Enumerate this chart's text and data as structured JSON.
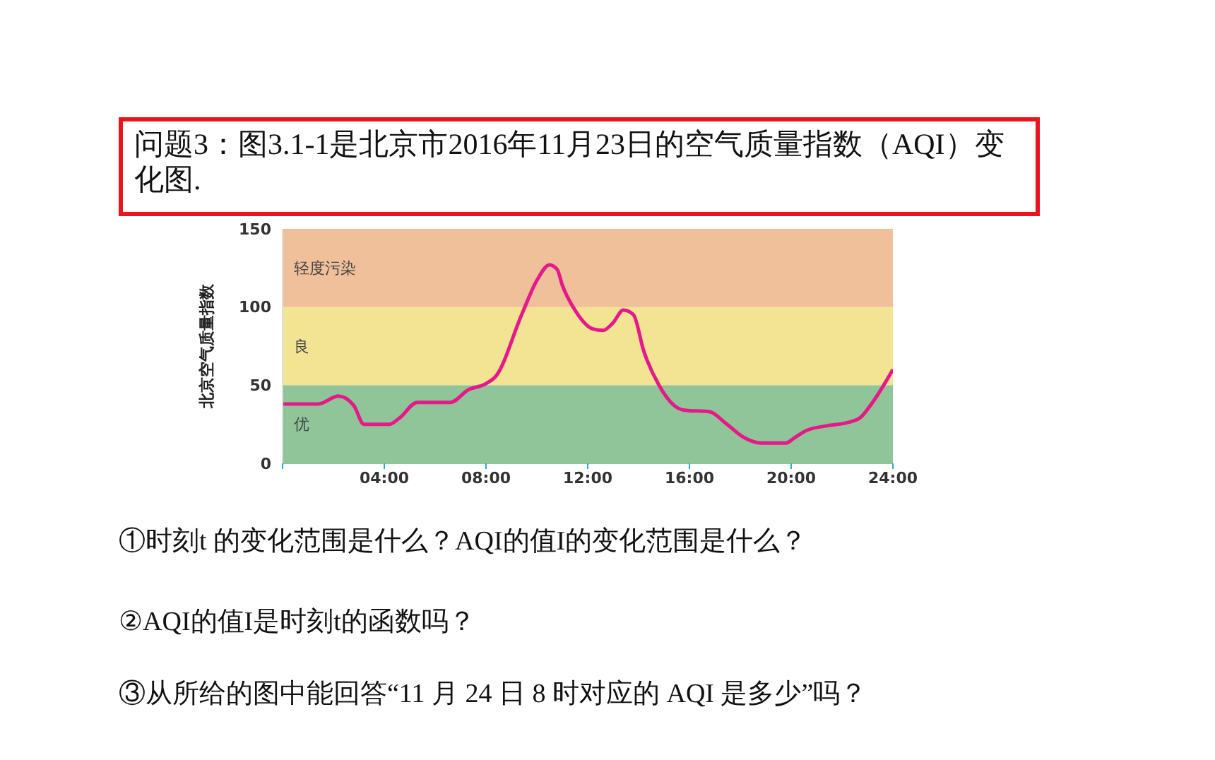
{
  "chart_data": {
    "type": "line",
    "title": "问题3：图3.1-1是北京市2016年11月23日的空气质量指数（AQI）变化图.",
    "ylabel": "北京空气质量指数",
    "x": [
      0,
      1.4,
      2.2,
      2.8,
      3.2,
      4.2,
      4.6,
      5.3,
      6.6,
      7.3,
      8.0,
      8.4,
      9.4,
      10.0,
      10.5,
      10.8,
      11.0,
      11.5,
      12.2,
      12.6,
      13.0,
      13.4,
      13.8,
      14.2,
      14.8,
      15.4,
      15.8,
      16.8,
      17.4,
      18.2,
      18.8,
      19.8,
      20.1,
      20.6,
      21.4,
      22.2,
      22.7,
      23.2,
      24
    ],
    "series": [
      {
        "color": "#e5198a",
        "values": [
          38,
          38,
          43,
          37,
          25,
          25,
          29,
          39,
          39,
          47,
          51,
          56,
          95,
          117,
          127,
          124,
          114,
          98,
          86,
          85,
          90,
          98,
          95,
          72,
          50,
          37,
          34,
          33,
          26,
          16,
          13,
          13,
          16,
          21,
          24,
          26,
          29,
          39,
          60
        ]
      }
    ],
    "xlim": [
      0,
      24
    ],
    "xticks": [
      {
        "value": 0,
        "label": null
      },
      {
        "value": 4,
        "label": "04:00"
      },
      {
        "value": 8,
        "label": "08:00"
      },
      {
        "value": 12,
        "label": "12:00"
      },
      {
        "value": 16,
        "label": "16:00"
      },
      {
        "value": 20,
        "label": "20:00"
      },
      {
        "value": 24,
        "label": "24:00"
      }
    ],
    "ylim": [
      0,
      150
    ],
    "yticks": [
      0,
      50,
      100,
      150
    ],
    "bands": [
      {
        "axis": "y",
        "from": 0,
        "to": 50,
        "label": "优",
        "color": "#8fc598"
      },
      {
        "axis": "y",
        "from": 50,
        "to": 100,
        "label": "良",
        "color": "#f3e494"
      },
      {
        "axis": "y",
        "from": 100,
        "to": 150,
        "label": "轻度污染",
        "color": "#efc09a"
      }
    ],
    "annotations": [
      "①时刻t 的变化范围是什么？AQI的值I的变化范围是什么？",
      "②AQI的值I是时刻t的函数吗？",
      "③从所给的图中能回答“11 月 24 日 8 时对应的 AQI 是多少”吗？"
    ],
    "grid": false,
    "legend": false,
    "marker": "none",
    "line_style": "solid"
  }
}
